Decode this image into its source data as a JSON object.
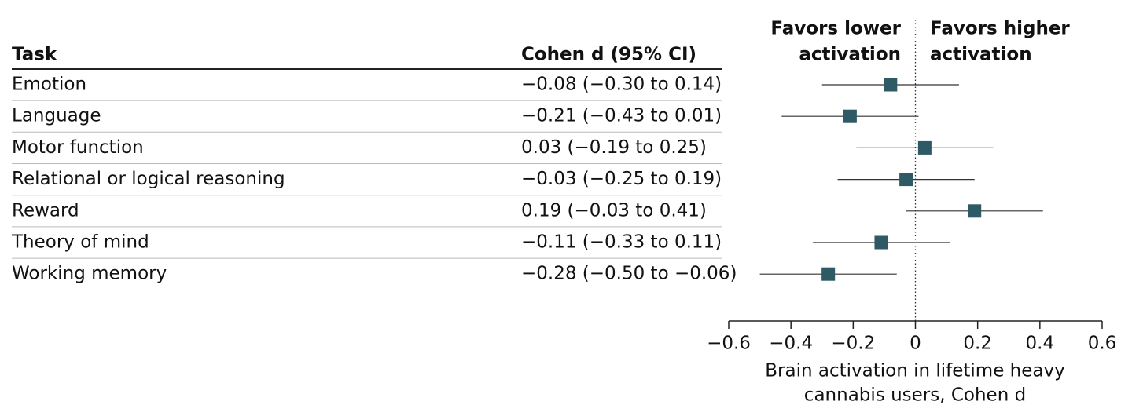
{
  "chart_data": {
    "type": "forest",
    "columns": [
      "Task",
      "Cohen d (95% CI)"
    ],
    "categories": [
      "Emotion",
      "Language",
      "Motor function",
      "Relational or logical reasoning",
      "Reward",
      "Theory of mind",
      "Working memory"
    ],
    "values": [
      -0.08,
      -0.21,
      0.03,
      -0.03,
      0.19,
      -0.11,
      -0.28
    ],
    "lower": [
      -0.3,
      -0.43,
      -0.19,
      -0.25,
      -0.03,
      -0.33,
      -0.5
    ],
    "upper": [
      0.14,
      0.01,
      0.25,
      0.19,
      0.41,
      0.11,
      -0.06
    ],
    "value_labels": [
      "−0.08 (−0.30 to 0.14)",
      "−0.21 (−0.43 to 0.01)",
      "0.03 (−0.19 to 0.25)",
      "−0.03 (−0.25 to 0.19)",
      "0.19 (−0.03 to 0.41)",
      "−0.11 (−0.33 to 0.11)",
      "−0.28 (−0.50 to −0.06)"
    ],
    "color": "#2e5a66",
    "reference": 0,
    "annotations": {
      "left": [
        "Favors lower",
        "activation"
      ],
      "right": [
        "Favors higher",
        "activation"
      ]
    },
    "xlabel": [
      "Brain activation in lifetime heavy",
      "cannabis users, Cohen d"
    ],
    "xlim": [
      -0.6,
      0.6
    ],
    "xticks": [
      {
        "value": -0.6,
        "label": "−0.6"
      },
      {
        "value": -0.4,
        "label": "−0.4"
      },
      {
        "value": -0.2,
        "label": "−0.2"
      },
      0,
      0.2,
      0.4,
      0.6
    ]
  }
}
